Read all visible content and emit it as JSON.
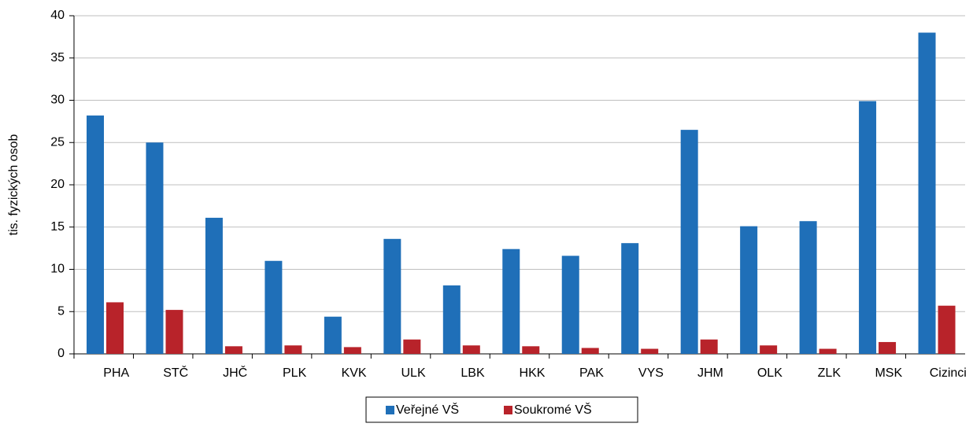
{
  "chart_data": {
    "type": "bar",
    "y_label": "tis. fyzických osob",
    "categories": [
      "PHA",
      "STČ",
      "JHČ",
      "PLK",
      "KVK",
      "ULK",
      "LBK",
      "HKK",
      "PAK",
      "VYS",
      "JHM",
      "OLK",
      "ZLK",
      "MSK",
      "Cizinci"
    ],
    "series": [
      {
        "name": "Veřejné VŠ",
        "color": "#1f6fb8",
        "values": [
          28.2,
          25.0,
          16.1,
          11.0,
          4.4,
          13.6,
          8.1,
          12.4,
          11.6,
          13.1,
          26.5,
          15.1,
          15.7,
          29.9,
          38.0
        ]
      },
      {
        "name": "Soukromé VŠ",
        "color": "#b8232a",
        "values": [
          6.1,
          5.2,
          0.9,
          1.0,
          0.8,
          1.7,
          1.0,
          0.9,
          0.7,
          0.6,
          1.7,
          1.0,
          0.6,
          1.4,
          5.7
        ]
      }
    ],
    "ylim": [
      0,
      40
    ],
    "yticks": [
      0,
      5,
      10,
      15,
      20,
      25,
      30,
      35,
      40
    ],
    "grid": true,
    "legend": "bottom"
  }
}
